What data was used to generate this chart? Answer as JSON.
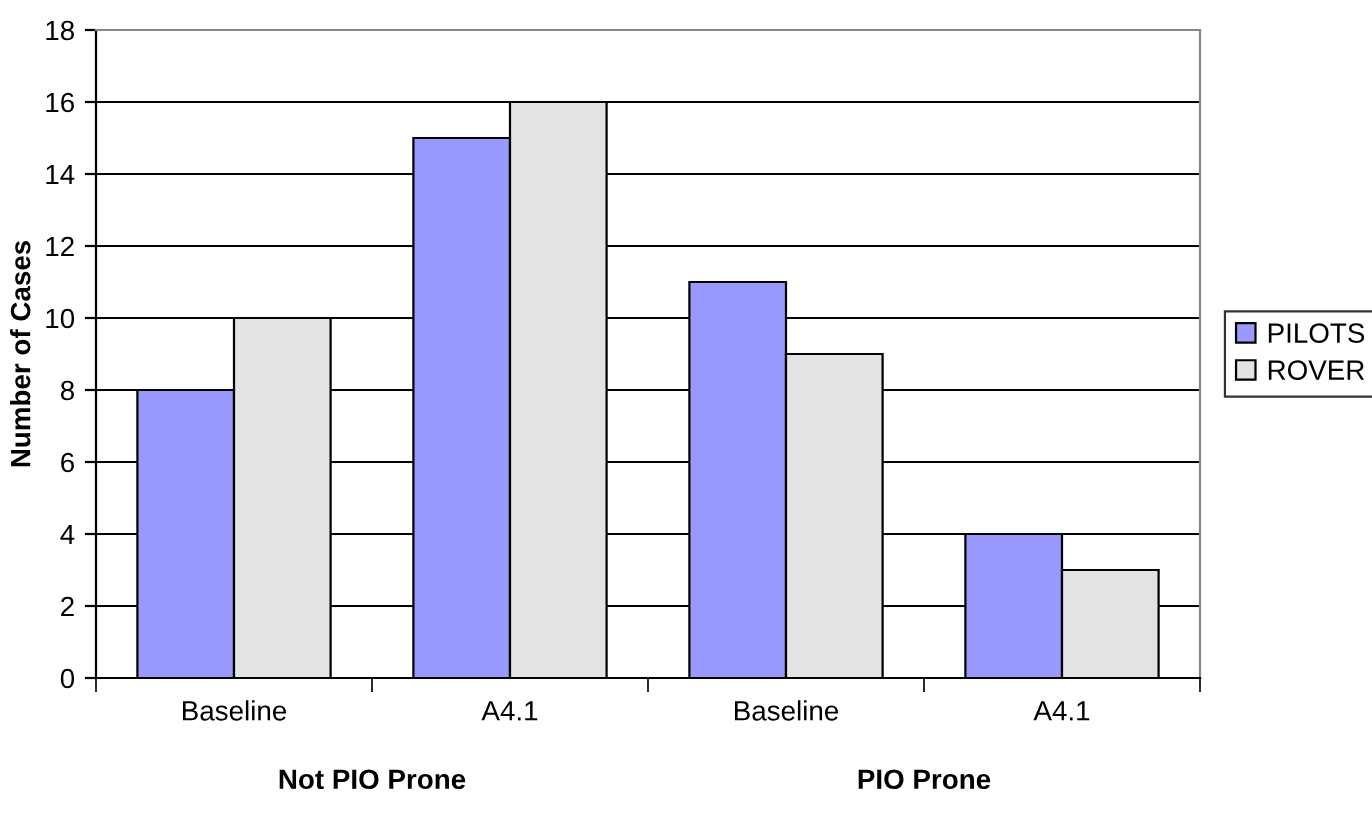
{
  "chart_data": {
    "type": "bar",
    "ylabel": "Number of Cases",
    "categories": [
      "Baseline",
      "A4.1",
      "Baseline",
      "A4.1"
    ],
    "series": [
      {
        "name": "PILOTS",
        "color": "#9999ff",
        "values": [
          8,
          15,
          11,
          4
        ]
      },
      {
        "name": "ROVER",
        "color": "#e3e3e3",
        "values": [
          10,
          16,
          9,
          3
        ]
      }
    ],
    "ylim": [
      0,
      18
    ],
    "yticks": [
      0,
      2,
      4,
      6,
      8,
      10,
      12,
      14,
      16,
      18
    ],
    "grid": "y",
    "legend": "right",
    "annotations": [
      "Not PIO Prone",
      "PIO Prone"
    ]
  }
}
